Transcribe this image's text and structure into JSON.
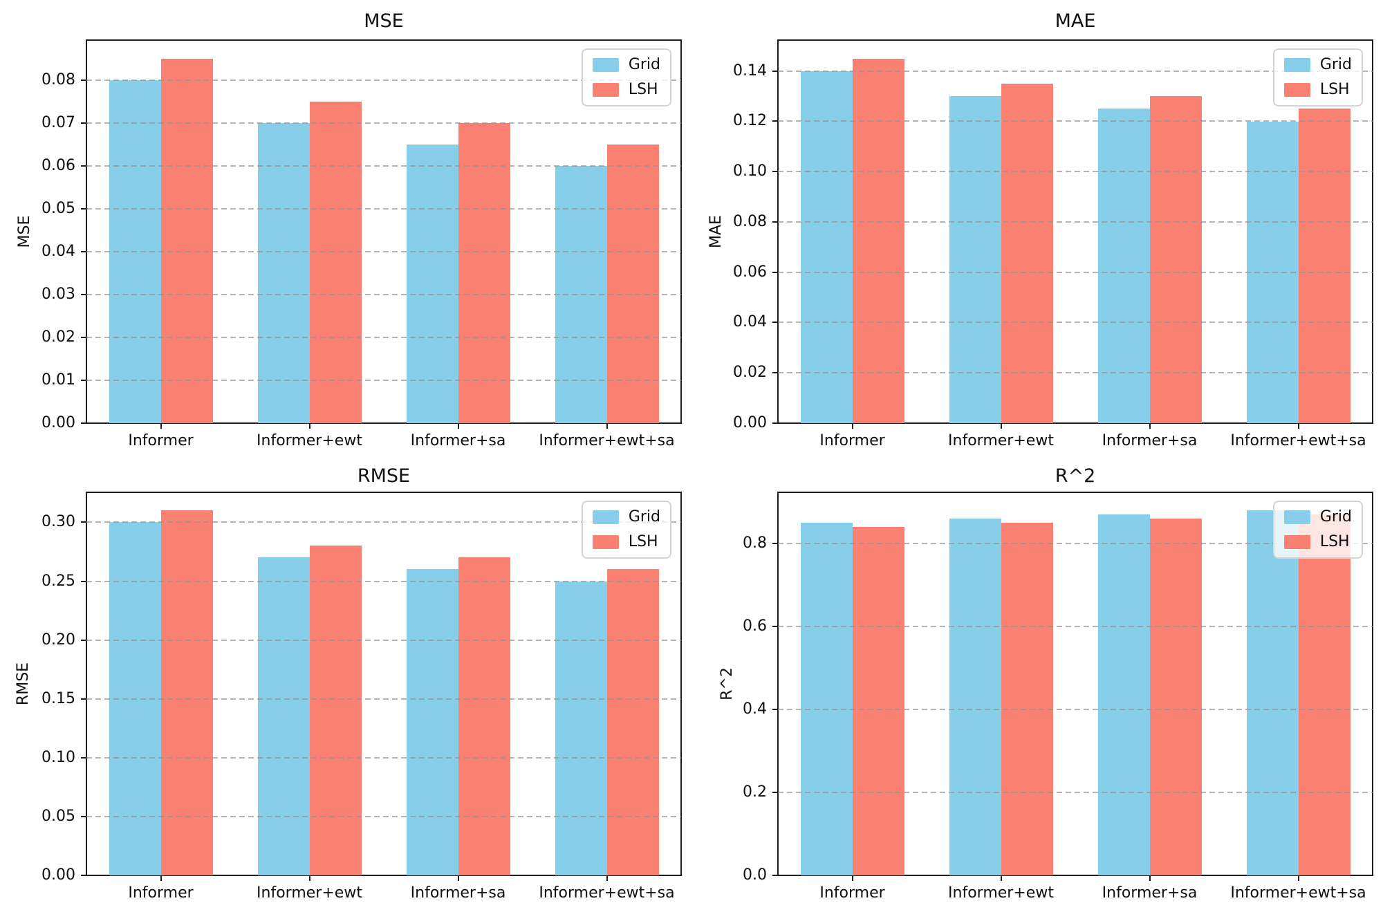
{
  "figure": {
    "background": "#ffffff",
    "layout": "2x2 grid of grouped bar charts",
    "series_names": [
      "Grid",
      "LSH"
    ]
  },
  "palette": {
    "grid_series_color": "#87CEEB",
    "lsh_series_color": "#FA8072",
    "axis_color": "#1c1c1c",
    "gridline_color": "#b0b0b0",
    "legend_background": "rgba(255,255,255,0.8)"
  },
  "chart_data": [
    {
      "type": "bar",
      "title": "MSE",
      "ylabel": "MSE",
      "xlabel": "",
      "categories": [
        "Informer",
        "Informer+ewt",
        "Informer+sa",
        "Informer+ewt+sa"
      ],
      "series": [
        {
          "name": "Grid",
          "color": "#87CEEB",
          "values": [
            0.08,
            0.07,
            0.065,
            0.06
          ]
        },
        {
          "name": "LSH",
          "color": "#FA8072",
          "values": [
            0.085,
            0.075,
            0.07,
            0.065
          ]
        }
      ],
      "yticks": [
        0.0,
        0.01,
        0.02,
        0.03,
        0.04,
        0.05,
        0.06,
        0.07,
        0.08
      ],
      "ytick_decimals": 2,
      "ylim": [
        0,
        0.0893
      ],
      "grid": "horizontal-dashed",
      "legend_position": "upper-right"
    },
    {
      "type": "bar",
      "title": "MAE",
      "ylabel": "MAE",
      "xlabel": "",
      "categories": [
        "Informer",
        "Informer+ewt",
        "Informer+sa",
        "Informer+ewt+sa"
      ],
      "series": [
        {
          "name": "Grid",
          "color": "#87CEEB",
          "values": [
            0.14,
            0.13,
            0.125,
            0.12
          ]
        },
        {
          "name": "LSH",
          "color": "#FA8072",
          "values": [
            0.145,
            0.135,
            0.13,
            0.125
          ]
        }
      ],
      "yticks": [
        0.0,
        0.02,
        0.04,
        0.06,
        0.08,
        0.1,
        0.12,
        0.14
      ],
      "ytick_decimals": 2,
      "ylim": [
        0,
        0.1523
      ],
      "grid": "horizontal-dashed",
      "legend_position": "upper-right"
    },
    {
      "type": "bar",
      "title": "RMSE",
      "ylabel": "RMSE",
      "xlabel": "",
      "categories": [
        "Informer",
        "Informer+ewt",
        "Informer+sa",
        "Informer+ewt+sa"
      ],
      "series": [
        {
          "name": "Grid",
          "color": "#87CEEB",
          "values": [
            0.3,
            0.27,
            0.26,
            0.25
          ]
        },
        {
          "name": "LSH",
          "color": "#FA8072",
          "values": [
            0.31,
            0.28,
            0.27,
            0.26
          ]
        }
      ],
      "yticks": [
        0.0,
        0.05,
        0.1,
        0.15,
        0.2,
        0.25,
        0.3
      ],
      "ytick_decimals": 2,
      "ylim": [
        0,
        0.3255
      ],
      "grid": "horizontal-dashed",
      "legend_position": "upper-right"
    },
    {
      "type": "bar",
      "title": "R^2",
      "ylabel": "R^2",
      "xlabel": "",
      "categories": [
        "Informer",
        "Informer+ewt",
        "Informer+sa",
        "Informer+ewt+sa"
      ],
      "series": [
        {
          "name": "Grid",
          "color": "#87CEEB",
          "values": [
            0.85,
            0.86,
            0.87,
            0.88
          ]
        },
        {
          "name": "LSH",
          "color": "#FA8072",
          "values": [
            0.84,
            0.85,
            0.86,
            0.87
          ]
        }
      ],
      "yticks": [
        0.0,
        0.2,
        0.4,
        0.6,
        0.8
      ],
      "ytick_decimals": 1,
      "ylim": [
        0,
        0.924
      ],
      "grid": "horizontal-dashed",
      "legend_position": "upper-right"
    }
  ]
}
